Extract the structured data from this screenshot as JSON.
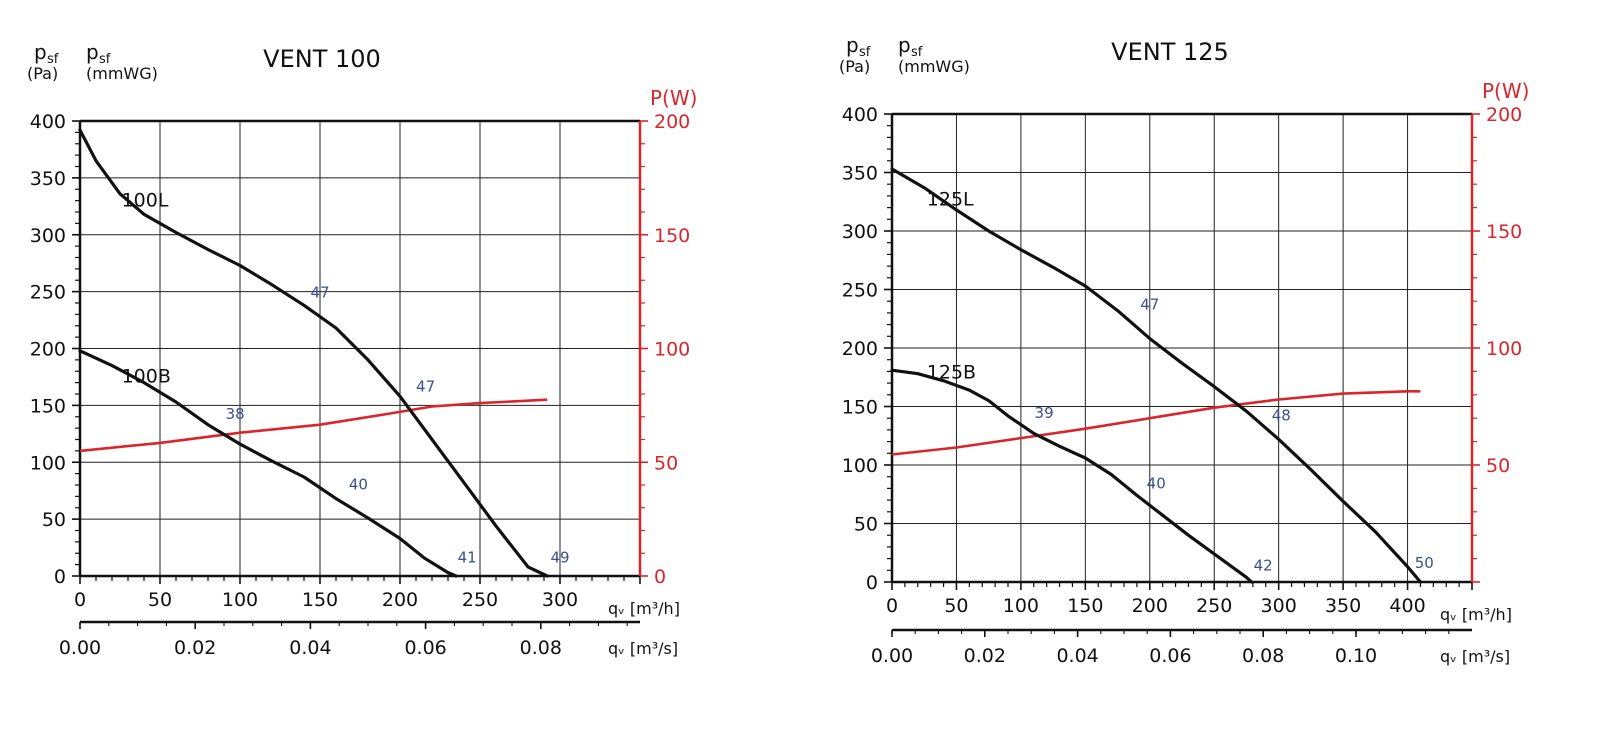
{
  "colors": {
    "black": "#111111",
    "grid": "#222222",
    "power": "#d9262c",
    "label": "#3d4f8f"
  },
  "chart_data": [
    {
      "type": "line",
      "title": "VENT 100",
      "ylabel_pa_symbol": "p",
      "ylabel_pa_sub": "sf",
      "ylabel_pa_unit": "(Pa)",
      "ylabel_mm_symbol": "p",
      "ylabel_mm_sub": "sf",
      "ylabel_mm_unit": "(mmWG)",
      "y2label": "P(W)",
      "xlabel_h": "qᵥ [m³/h]",
      "xlabel_s": "qᵥ [m³/s]",
      "xlim": [
        0,
        350
      ],
      "ylim": [
        0,
        400
      ],
      "y2lim": [
        0,
        200
      ],
      "x_ticks": [
        0,
        50,
        100,
        150,
        200,
        250,
        300
      ],
      "y_ticks": [
        0,
        50,
        100,
        150,
        200,
        250,
        300,
        350,
        400
      ],
      "y2_ticks": [
        0,
        50,
        100,
        150,
        200
      ],
      "s_ticks": [
        "0.00",
        "0.02",
        "0.04",
        "0.06",
        "0.08"
      ],
      "s_tick_values": [
        0,
        0.02,
        0.04,
        0.06,
        0.08
      ],
      "series": [
        {
          "name": "100L",
          "label_at": [
            26,
            325
          ],
          "x": [
            0,
            10,
            25,
            40,
            60,
            80,
            100,
            120,
            140,
            160,
            180,
            200,
            220,
            240,
            260,
            280,
            292
          ],
          "y": [
            392,
            365,
            336,
            318,
            302,
            287,
            273,
            256,
            238,
            218,
            190,
            158,
            120,
            82,
            44,
            8,
            0
          ]
        },
        {
          "name": "100B",
          "label_at": [
            26,
            170
          ],
          "x": [
            0,
            20,
            40,
            60,
            80,
            100,
            120,
            140,
            160,
            180,
            200,
            215,
            230,
            235
          ],
          "y": [
            198,
            185,
            170,
            153,
            133,
            116,
            101,
            87,
            68,
            51,
            33,
            16,
            3,
            0
          ]
        }
      ],
      "power": {
        "name": "P(W)",
        "x": [
          0,
          50,
          100,
          150,
          190,
          220,
          250,
          292
        ],
        "y": [
          55,
          58.5,
          63,
          66.5,
          71,
          74.5,
          76,
          77.5
        ]
      },
      "annotations": [
        {
          "text": "47",
          "x": 150,
          "y": 245
        },
        {
          "text": "47",
          "x": 216,
          "y": 162
        },
        {
          "text": "38",
          "x": 97,
          "y": 138
        },
        {
          "text": "40",
          "x": 174,
          "y": 76
        },
        {
          "text": "41",
          "x": 242,
          "y": 12
        },
        {
          "text": "49",
          "x": 300,
          "y": 12
        }
      ]
    },
    {
      "type": "line",
      "title": "VENT 125",
      "ylabel_pa_symbol": "p",
      "ylabel_pa_sub": "sf",
      "ylabel_pa_unit": "(Pa)",
      "ylabel_mm_symbol": "p",
      "ylabel_mm_sub": "sf",
      "ylabel_mm_unit": "(mmWG)",
      "y2label": "P(W)",
      "xlabel_h": "qᵥ [m³/h]",
      "xlabel_s": "qᵥ [m³/s]",
      "xlim": [
        0,
        450
      ],
      "ylim": [
        0,
        400
      ],
      "y2lim": [
        0,
        200
      ],
      "x_ticks": [
        0,
        50,
        100,
        150,
        200,
        250,
        300,
        350,
        400
      ],
      "y_ticks": [
        0,
        50,
        100,
        150,
        200,
        250,
        300,
        350,
        400
      ],
      "y2_ticks": [
        50,
        100,
        150,
        200
      ],
      "s_ticks": [
        "0.00",
        "0.02",
        "0.04",
        "0.06",
        "0.08",
        "0.10"
      ],
      "s_tick_values": [
        0,
        0.02,
        0.04,
        0.06,
        0.08,
        0.1
      ],
      "series": [
        {
          "name": "125L",
          "label_at": [
            27,
            322
          ],
          "x": [
            0,
            25,
            50,
            75,
            100,
            125,
            150,
            175,
            200,
            225,
            250,
            275,
            300,
            325,
            350,
            375,
            400,
            410
          ],
          "y": [
            353,
            337,
            318,
            300,
            284,
            269,
            253,
            232,
            208,
            187,
            167,
            146,
            122,
            96,
            69,
            43,
            13,
            0
          ]
        },
        {
          "name": "125B",
          "label_at": [
            27,
            174
          ],
          "x": [
            0,
            20,
            40,
            60,
            75,
            90,
            110,
            130,
            150,
            170,
            190,
            210,
            230,
            250,
            275,
            279
          ],
          "y": [
            181,
            178,
            172,
            164,
            155,
            142,
            127,
            116,
            106,
            92,
            74,
            57,
            40,
            24,
            4,
            0
          ]
        }
      ],
      "power": {
        "name": "P(W)",
        "x": [
          0,
          50,
          100,
          150,
          200,
          250,
          300,
          350,
          400,
          410
        ],
        "y": [
          54.5,
          57.5,
          61.5,
          65.5,
          70,
          74.5,
          78,
          80.5,
          81.5,
          81.5
        ]
      },
      "annotations": [
        {
          "text": "47",
          "x": 200,
          "y": 233
        },
        {
          "text": "39",
          "x": 118,
          "y": 140
        },
        {
          "text": "48",
          "x": 302,
          "y": 138
        },
        {
          "text": "40",
          "x": 205,
          "y": 80
        },
        {
          "text": "42",
          "x": 288,
          "y": 10
        },
        {
          "text": "50",
          "x": 413,
          "y": 12
        }
      ]
    }
  ]
}
